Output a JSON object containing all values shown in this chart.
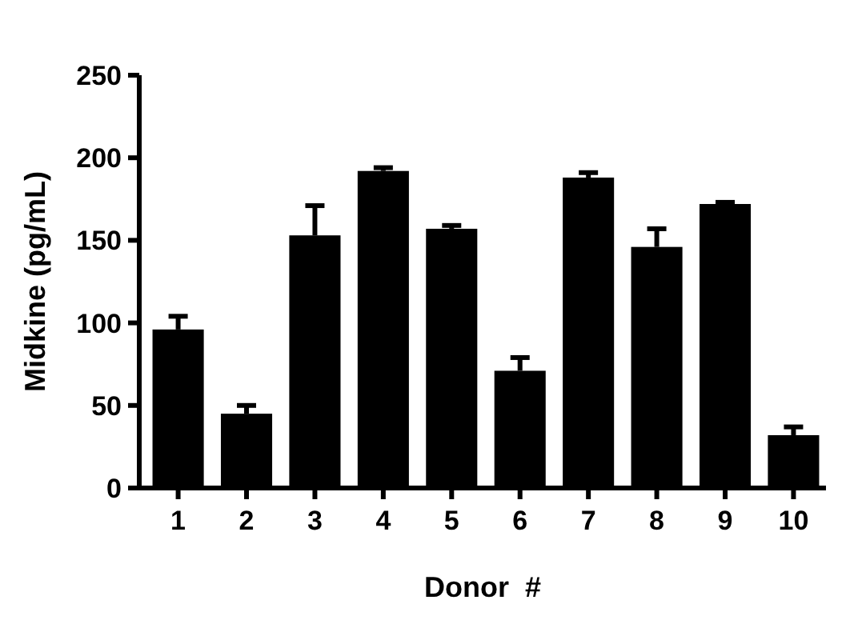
{
  "chart_data": {
    "type": "bar",
    "xlabel": "Donor  #",
    "ylabel": "Midkine (pg/mL)",
    "categories": [
      "1",
      "2",
      "3",
      "4",
      "5",
      "6",
      "7",
      "8",
      "9",
      "10"
    ],
    "values": [
      96,
      45,
      153,
      192,
      157,
      71,
      188,
      146,
      172,
      32
    ],
    "errors": [
      [
        96,
        104
      ],
      [
        45,
        50
      ],
      [
        153,
        171
      ],
      [
        192,
        194
      ],
      [
        157,
        159
      ],
      [
        71,
        79
      ],
      [
        188,
        191
      ],
      [
        146,
        157
      ],
      [
        172,
        173
      ],
      [
        32,
        37
      ]
    ],
    "color": "#000000",
    "ylim": [
      0,
      250
    ],
    "yticks": [
      0,
      50,
      100,
      150,
      200,
      250
    ],
    "grid": false
  }
}
